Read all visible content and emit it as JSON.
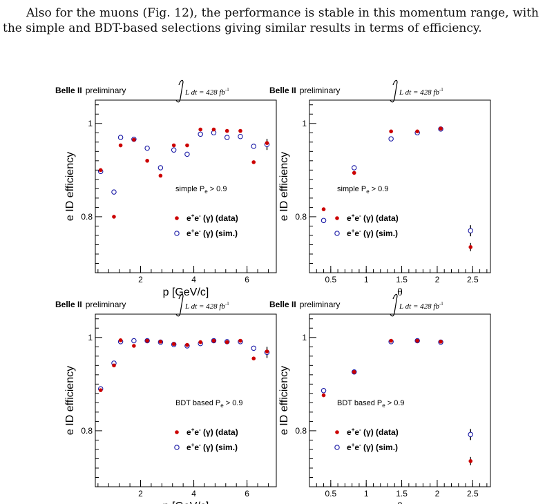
{
  "paragraph": "Also for the muons (Fig. 12), the performance is stable in this momentum range, with the simple and BDT-based selections giving similar results in terms of efficiency.",
  "colors": {
    "data": "#cc0000",
    "sim": "#1a1aa6",
    "axis": "#000000"
  },
  "labels": {
    "experiment": "Belle II",
    "preliminary": "preliminary",
    "lumi_prefix": "L dt = 428 fb",
    "lumi_exp": "-1",
    "legend_data_tail": " (γ) (data)",
    "legend_sim_tail": " (γ) (sim.)",
    "legend_e1": "e",
    "legend_plus": "+",
    "legend_e2": "e",
    "legend_minus": "-"
  },
  "chart_data": [
    {
      "type": "scatter",
      "xlabel": "p [GeV/c]",
      "ylabel": "e ID efficiency",
      "selection": "simple P",
      "selection_sub": "e",
      "selection_tail": " > 0.9",
      "xlim": [
        0.3,
        7.1
      ],
      "ylim": [
        0.68,
        1.05
      ],
      "xticks": [
        "2",
        "4",
        "6"
      ],
      "yticks": [
        "0.8",
        "1"
      ],
      "series": [
        {
          "name": "e+e- (γ) (data)",
          "x": [
            0.5,
            1.0,
            1.25,
            1.75,
            2.25,
            2.75,
            3.25,
            3.75,
            4.25,
            4.75,
            5.25,
            5.75,
            6.25,
            6.75
          ],
          "y": [
            0.9,
            0.8,
            0.953,
            0.965,
            0.92,
            0.888,
            0.953,
            0.953,
            0.987,
            0.987,
            0.984,
            0.984,
            0.917,
            0.958
          ]
        },
        {
          "name": "e+e- (γ) (sim.)",
          "x": [
            0.5,
            1.0,
            1.25,
            1.75,
            2.25,
            2.75,
            3.25,
            3.75,
            4.25,
            4.75,
            5.25,
            5.75,
            6.25,
            6.75
          ],
          "y": [
            0.897,
            0.853,
            0.97,
            0.966,
            0.947,
            0.905,
            0.943,
            0.934,
            0.977,
            0.98,
            0.97,
            0.972,
            0.951,
            0.955
          ]
        }
      ]
    },
    {
      "type": "scatter",
      "xlabel": "θ",
      "ylabel": "e ID efficiency",
      "selection": "simple P",
      "selection_sub": "e",
      "selection_tail": " > 0.9",
      "xlim": [
        0.2,
        2.75
      ],
      "ylim": [
        0.68,
        1.05
      ],
      "xticks": [
        "0.5",
        "1",
        "1.5",
        "2",
        "2.5"
      ],
      "yticks": [
        "0.8",
        "1"
      ],
      "series": [
        {
          "name": "e+e- (γ) (data)",
          "x": [
            0.4,
            0.83,
            1.35,
            1.72,
            2.05,
            2.47
          ],
          "y": [
            0.816,
            0.894,
            0.983,
            0.983,
            0.989,
            0.735
          ]
        },
        {
          "name": "e+e- (γ) (sim.)",
          "x": [
            0.4,
            0.83,
            1.35,
            1.72,
            2.05,
            2.47
          ],
          "y": [
            0.792,
            0.905,
            0.967,
            0.98,
            0.988,
            0.77
          ]
        }
      ]
    },
    {
      "type": "scatter",
      "xlabel": "p [GeV/c]",
      "ylabel": "e ID efficiency",
      "selection": "BDT based P",
      "selection_sub": "e",
      "selection_tail": " > 0.9",
      "xlim": [
        0.3,
        7.1
      ],
      "ylim": [
        0.68,
        1.05
      ],
      "xticks": [
        "2",
        "4",
        "6"
      ],
      "yticks": [
        "0.8",
        "1"
      ],
      "series": [
        {
          "name": "e+e- (γ) (data)",
          "x": [
            0.5,
            1.0,
            1.25,
            1.75,
            2.25,
            2.75,
            3.25,
            3.75,
            4.25,
            4.75,
            5.25,
            5.75,
            6.25,
            6.75
          ],
          "y": [
            0.887,
            0.94,
            0.994,
            0.982,
            0.993,
            0.991,
            0.986,
            0.984,
            0.99,
            0.993,
            0.99,
            0.993,
            0.955,
            0.97
          ]
        },
        {
          "name": "e+e- (γ) (sim.)",
          "x": [
            0.5,
            1.0,
            1.25,
            1.75,
            2.25,
            2.75,
            3.25,
            3.75,
            4.25,
            4.75,
            5.25,
            5.75,
            6.25,
            6.75
          ],
          "y": [
            0.89,
            0.945,
            0.991,
            0.993,
            0.993,
            0.99,
            0.985,
            0.982,
            0.987,
            0.993,
            0.991,
            0.991,
            0.977,
            0.968
          ]
        }
      ]
    },
    {
      "type": "scatter",
      "xlabel": "θ",
      "ylabel": "e ID efficiency",
      "selection": "BDT based P",
      "selection_sub": "e",
      "selection_tail": " > 0.9",
      "xlim": [
        0.2,
        2.75
      ],
      "ylim": [
        0.68,
        1.05
      ],
      "xticks": [
        "0.5",
        "1",
        "1.5",
        "2",
        "2.5"
      ],
      "yticks": [
        "0.8",
        "1"
      ],
      "series": [
        {
          "name": "e+e- (γ) (data)",
          "x": [
            0.4,
            0.83,
            1.35,
            1.72,
            2.05,
            2.47
          ],
          "y": [
            0.876,
            0.926,
            0.993,
            0.993,
            0.991,
            0.735
          ]
        },
        {
          "name": "e+e- (γ) (sim.)",
          "x": [
            0.4,
            0.83,
            1.35,
            1.72,
            2.05,
            2.47
          ],
          "y": [
            0.886,
            0.926,
            0.991,
            0.993,
            0.99,
            0.792
          ]
        }
      ]
    }
  ]
}
